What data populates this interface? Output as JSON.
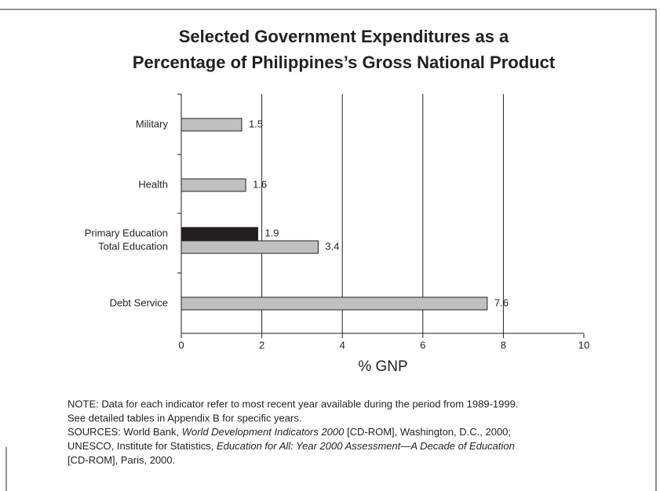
{
  "chart_data": {
    "type": "hbar",
    "title": [
      "Selected Government Expenditures as a",
      "Percentage of Philippines’s Gross National Product"
    ],
    "categories": [
      "Military",
      "Health",
      "Primary Education",
      "Total Education",
      "Debt Service"
    ],
    "values": [
      1.5,
      1.6,
      1.9,
      3.4,
      7.6
    ],
    "colors": [
      "#c0c0c0",
      "#c0c0c0",
      "#231f20",
      "#c0c0c0",
      "#c0c0c0"
    ],
    "xlabel": "% GNP",
    "xlim": [
      0,
      10
    ],
    "xticks": [
      0,
      2,
      4,
      6,
      8,
      10
    ],
    "grid": true
  },
  "note": [
    "NOTE: Data for each indicator refer to most recent year available during the period from 1989-1999.",
    "See detailed tables in Appendix B for specific years."
  ],
  "sources": [
    [
      {
        "text": "SOURCES: World Bank, ",
        "italic": false
      },
      {
        "text": "World Development Indicators 2000",
        "italic": true
      },
      {
        "text": " [CD-ROM], Washington, D.C., 2000;",
        "italic": false
      }
    ],
    [
      {
        "text": "UNESCO, Institute for Statistics, ",
        "italic": false
      },
      {
        "text": "Education for All: Year 2000 Assessment—A Decade of Education",
        "italic": true
      }
    ],
    [
      {
        "text": "[CD-ROM], Paris, 2000.",
        "italic": false
      }
    ]
  ]
}
